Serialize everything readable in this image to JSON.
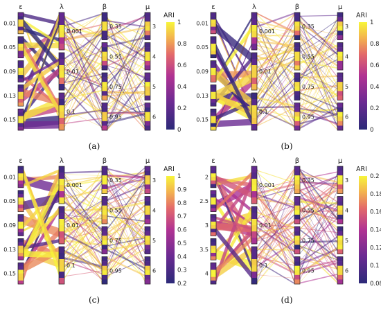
{
  "chart_data": [
    {
      "type": "parallel_categories",
      "caption": "(a)",
      "dimensions": [
        {
          "name": "ε",
          "labels": [
            "0.01",
            "0.05",
            "0.09",
            "0.13",
            "0.15"
          ]
        },
        {
          "name": "λ",
          "labels": [
            "0.001",
            "0.01",
            "0.1"
          ]
        },
        {
          "name": "β",
          "labels": [
            "0.35",
            "0.55",
            "0.75",
            "0.95"
          ]
        },
        {
          "name": "μ",
          "labels": [
            "3",
            "4",
            "5",
            "6"
          ]
        }
      ],
      "colorbar": {
        "title": "ARI",
        "ticks": [
          "0",
          "0.2",
          "0.4",
          "0.6",
          "0.8",
          "1"
        ],
        "range": [
          0,
          1
        ]
      }
    },
    {
      "type": "parallel_categories",
      "caption": "(b)",
      "dimensions": [
        {
          "name": "ε",
          "labels": [
            "0.01",
            "0.05",
            "0.09",
            "0.13",
            "0.15"
          ]
        },
        {
          "name": "λ",
          "labels": [
            "0.001",
            "0.01",
            "0.1"
          ]
        },
        {
          "name": "β",
          "labels": [
            "0.35",
            "0.55",
            "0.75",
            "0.95"
          ]
        },
        {
          "name": "μ",
          "labels": [
            "3",
            "4",
            "5",
            "6"
          ]
        }
      ],
      "colorbar": {
        "title": "ARI",
        "ticks": [
          "0",
          "0.2",
          "0.4",
          "0.6",
          "0.8",
          "1"
        ],
        "range": [
          0,
          1
        ]
      }
    },
    {
      "type": "parallel_categories",
      "caption": "(c)",
      "dimensions": [
        {
          "name": "ε",
          "labels": [
            "0.01",
            "0.05",
            "0.09",
            "0.13",
            "0.15"
          ]
        },
        {
          "name": "λ",
          "labels": [
            "0.001",
            "0.01",
            "0.1"
          ]
        },
        {
          "name": "β",
          "labels": [
            "0.35",
            "0.55",
            "0.75",
            "0.95"
          ]
        },
        {
          "name": "μ",
          "labels": [
            "3",
            "4",
            "5",
            "6"
          ]
        }
      ],
      "colorbar": {
        "title": "ARI",
        "ticks": [
          "0.2",
          "0.3",
          "0.4",
          "0.5",
          "0.6",
          "0.7",
          "0.8",
          "0.9",
          "1"
        ],
        "range": [
          0.2,
          1
        ]
      }
    },
    {
      "type": "parallel_categories",
      "caption": "(d)",
      "dimensions": [
        {
          "name": "ε",
          "labels": [
            "2",
            "2.5",
            "3",
            "3.5",
            "4"
          ]
        },
        {
          "name": "λ",
          "labels": [
            "0.001",
            "0.01",
            "0.1"
          ]
        },
        {
          "name": "β",
          "labels": [
            "0.35",
            "0.55",
            "0.75",
            "0.95"
          ]
        },
        {
          "name": "μ",
          "labels": [
            "3",
            "4",
            "5",
            "6"
          ]
        }
      ],
      "colorbar": {
        "title": "ARI",
        "ticks": [
          "0.08",
          "0.1",
          "0.12",
          "0.14",
          "0.16",
          "0.18",
          "0.2"
        ],
        "range": [
          0.08,
          0.2
        ]
      }
    }
  ],
  "colors": {
    "low": "#2b2a7a",
    "mid": "#b7308f",
    "high": "#f7f03b"
  }
}
